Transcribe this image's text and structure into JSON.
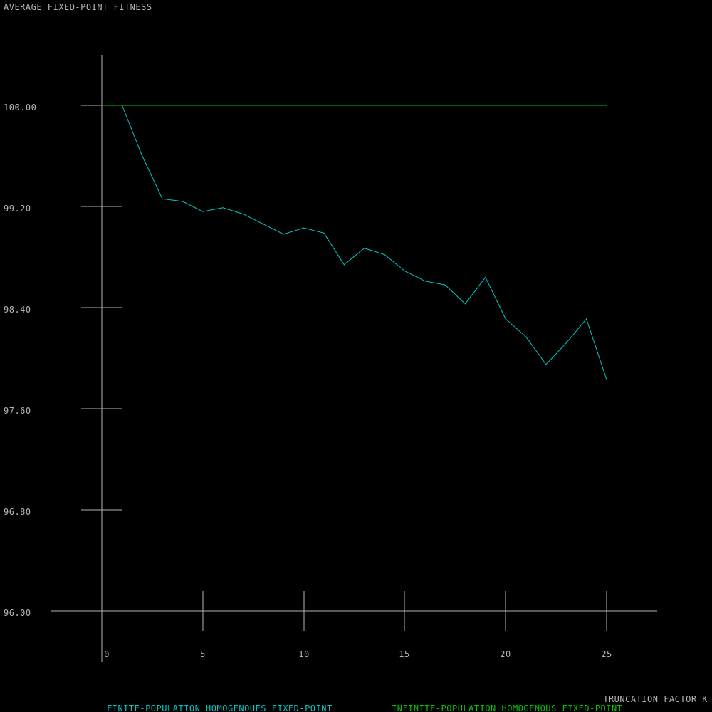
{
  "chart_data": {
    "type": "line",
    "title": "AVERAGE FIXED-POINT FITNESS",
    "xlabel": "TRUNCATION FACTOR K",
    "ylabel": "",
    "xlim": [
      0,
      25
    ],
    "ylim": [
      96.0,
      100.0
    ],
    "xticks": [
      0,
      5,
      10,
      15,
      20,
      25
    ],
    "xtick_labels": [
      "0",
      "5",
      "10",
      "15",
      "20",
      "25"
    ],
    "yticks": [
      96.0,
      96.8,
      97.6,
      98.4,
      99.2,
      100.0
    ],
    "ytick_labels": [
      "96.00",
      "96.80",
      "97.60",
      "98.40",
      "99.20",
      "100.00"
    ],
    "grid": false,
    "legend_position": "bottom",
    "series": [
      {
        "name": "FINITE-POPULATION HOMOGENOUES FIXED-POINT",
        "color": "#00c8c8",
        "x": [
          1,
          2,
          3,
          4,
          5,
          6,
          7,
          8,
          9,
          10,
          11,
          12,
          13,
          14,
          15,
          16,
          17,
          18,
          19,
          20,
          21,
          22,
          23,
          24,
          25
        ],
        "y": [
          100.0,
          99.6,
          99.26,
          99.24,
          99.16,
          99.19,
          99.14,
          99.06,
          98.98,
          99.03,
          98.99,
          98.74,
          98.87,
          98.82,
          98.69,
          98.61,
          98.58,
          98.43,
          98.64,
          98.31,
          98.17,
          97.95,
          98.12,
          98.31,
          97.83
        ]
      },
      {
        "name": "INFINITE-POPULATION HOMOGENOUS FIXED-POINT",
        "color": "#00c800",
        "x": [
          0,
          25
        ],
        "y": [
          100.0,
          100.0
        ]
      }
    ]
  }
}
